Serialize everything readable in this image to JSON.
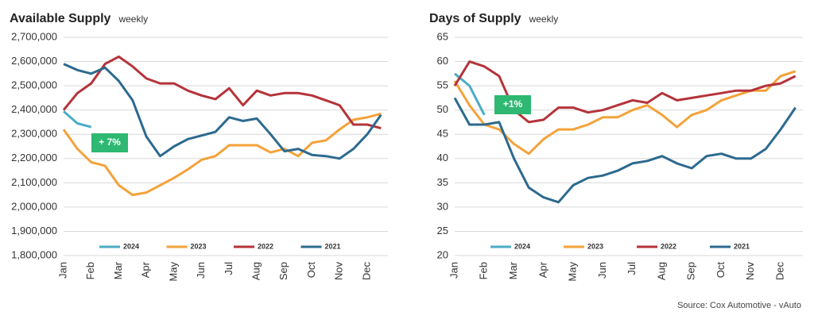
{
  "source": "Source: Cox Automotive - vAuto",
  "chart_data": [
    {
      "type": "line",
      "title": "Available Supply",
      "subtitle": "weekly",
      "annotation": "+ 7%",
      "categories": [
        "Jan",
        null,
        "Feb",
        null,
        "Mar",
        null,
        "Apr",
        null,
        "May",
        null,
        "Jun",
        null,
        "Jul",
        null,
        "Aug",
        null,
        "Sep",
        null,
        "Oct",
        null,
        "Nov",
        null,
        "Dec",
        null
      ],
      "ylim": [
        1800000,
        2700000
      ],
      "yticks": [
        {
          "value": 1800000,
          "label": "1,800,000"
        },
        {
          "value": 1900000,
          "label": "1,900,000"
        },
        {
          "value": 2000000,
          "label": "2,000,000"
        },
        {
          "value": 2100000,
          "label": "2,100,000"
        },
        {
          "value": 2200000,
          "label": "2,200,000"
        },
        {
          "value": 2300000,
          "label": "2,300,000"
        },
        {
          "value": 2400000,
          "label": "2,400,000"
        },
        {
          "value": 2500000,
          "label": "2,500,000"
        },
        {
          "value": 2600000,
          "label": "2,600,000"
        },
        {
          "value": 2700000,
          "label": "2,700,000"
        }
      ],
      "grid": true,
      "series": [
        {
          "name": "2024",
          "color": "#4bacc6",
          "values": [
            2395000,
            2345000,
            2330000,
            null,
            null,
            null,
            null,
            null,
            null,
            null,
            null,
            null,
            null,
            null,
            null,
            null,
            null,
            null,
            null,
            null,
            null,
            null,
            null,
            null
          ]
        },
        {
          "name": "2023",
          "color": "#f4a23a",
          "values": [
            2320000,
            2240000,
            2185000,
            2170000,
            2090000,
            2050000,
            2060000,
            2090000,
            2120000,
            2155000,
            2195000,
            2210000,
            2255000,
            2255000,
            2255000,
            2225000,
            2240000,
            2210000,
            2265000,
            2275000,
            2320000,
            2360000,
            2370000,
            2385000
          ]
        },
        {
          "name": "2022",
          "color": "#b5333a",
          "values": [
            2400000,
            2470000,
            2510000,
            2590000,
            2620000,
            2580000,
            2530000,
            2510000,
            2510000,
            2480000,
            2460000,
            2445000,
            2490000,
            2420000,
            2480000,
            2460000,
            2470000,
            2470000,
            2460000,
            2440000,
            2420000,
            2340000,
            2340000,
            2325000
          ]
        },
        {
          "name": "2021",
          "color": "#2d6a8f",
          "values": [
            2590000,
            2565000,
            2550000,
            2575000,
            2520000,
            2440000,
            2290000,
            2210000,
            2250000,
            2280000,
            2295000,
            2310000,
            2370000,
            2355000,
            2365000,
            2300000,
            2230000,
            2240000,
            2215000,
            2210000,
            2200000,
            2240000,
            2300000,
            2380000
          ]
        }
      ]
    },
    {
      "type": "line",
      "title": "Days of Supply",
      "subtitle": "weekly",
      "annotation": "+1%",
      "categories": [
        "Jan",
        null,
        "Feb",
        null,
        "Mar",
        null,
        "Apr",
        null,
        "May",
        null,
        "Jun",
        null,
        "Jul",
        null,
        "Aug",
        null,
        "Sep",
        null,
        "Oct",
        null,
        "Nov",
        null,
        "Dec",
        null
      ],
      "ylim": [
        20,
        65
      ],
      "yticks": [
        20,
        25,
        30,
        35,
        40,
        45,
        50,
        55,
        60,
        65
      ],
      "grid": true,
      "series": [
        {
          "name": "2024",
          "color": "#4bacc6",
          "values": [
            57.5,
            55,
            49,
            null,
            null,
            null,
            null,
            null,
            null,
            null,
            null,
            null,
            null,
            null,
            null,
            null,
            null,
            null,
            null,
            null,
            null,
            null,
            null,
            null
          ]
        },
        {
          "name": "2023",
          "color": "#f4a23a",
          "values": [
            56,
            51,
            47,
            46,
            43,
            41,
            44,
            46,
            46,
            47,
            48.5,
            48.5,
            50,
            51,
            49,
            46.5,
            49,
            50,
            52,
            53,
            54,
            54,
            57,
            58
          ]
        },
        {
          "name": "2022",
          "color": "#b5333a",
          "values": [
            55,
            60,
            59,
            57,
            50,
            47.5,
            48,
            50.5,
            50.5,
            49.5,
            50,
            51,
            52,
            51.5,
            53.5,
            52,
            52.5,
            53,
            53.5,
            54,
            54,
            55,
            55.5,
            57
          ]
        },
        {
          "name": "2021",
          "color": "#2d6a8f",
          "values": [
            52.5,
            47,
            47,
            47.5,
            40,
            34,
            32,
            31,
            34.5,
            36,
            36.5,
            37.5,
            39,
            39.5,
            40.5,
            39,
            38,
            40.5,
            41,
            40,
            40,
            42,
            46,
            50.5
          ]
        }
      ]
    }
  ]
}
